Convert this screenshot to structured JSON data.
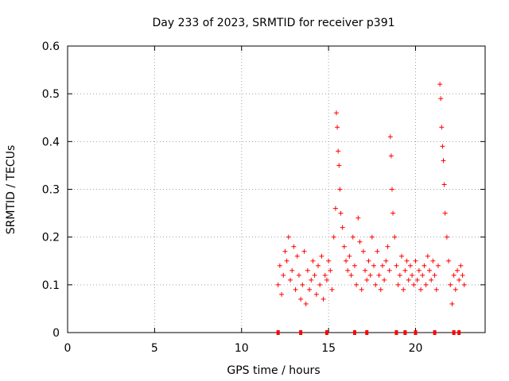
{
  "chart_data": {
    "type": "scatter",
    "title": "Day 233 of 2023, SRMTID for receiver p391",
    "xlabel": "GPS time / hours",
    "ylabel": "SRMTID / TECUs",
    "xlim": [
      0,
      24
    ],
    "ylim": [
      0,
      0.6
    ],
    "xticks": [
      0,
      5,
      10,
      15,
      20
    ],
    "yticks": [
      0,
      0.1,
      0.2,
      0.3,
      0.4,
      0.5,
      0.6
    ],
    "xtick_labels": [
      "0",
      "5",
      "10",
      "15",
      "20"
    ],
    "ytick_labels": [
      "0",
      "0.1",
      "0.2",
      "0.3",
      "0.4",
      "0.5",
      "0.6"
    ],
    "grid": true,
    "marker": "+",
    "color": "#ff0000",
    "series": [
      {
        "name": "p391",
        "x": [
          12.1,
          12.2,
          12.3,
          12.4,
          12.5,
          12.6,
          12.7,
          12.8,
          12.9,
          13.0,
          13.1,
          13.2,
          13.3,
          13.4,
          13.5,
          13.6,
          13.7,
          13.8,
          13.9,
          14.0,
          14.1,
          14.2,
          14.3,
          14.4,
          14.5,
          14.6,
          14.7,
          14.8,
          14.9,
          15.0,
          15.1,
          15.2,
          15.3,
          15.4,
          15.45,
          15.5,
          15.55,
          15.6,
          15.65,
          15.7,
          15.8,
          15.9,
          16.0,
          16.1,
          16.2,
          16.3,
          16.4,
          16.5,
          16.6,
          16.7,
          16.8,
          16.9,
          17.0,
          17.1,
          17.2,
          17.3,
          17.4,
          17.5,
          17.6,
          17.7,
          17.8,
          17.9,
          18.0,
          18.1,
          18.2,
          18.3,
          18.4,
          18.5,
          18.55,
          18.6,
          18.65,
          18.7,
          18.8,
          18.9,
          19.0,
          19.1,
          19.2,
          19.3,
          19.4,
          19.5,
          19.6,
          19.7,
          19.8,
          19.9,
          20.0,
          20.1,
          20.2,
          20.3,
          20.4,
          20.5,
          20.6,
          20.7,
          20.8,
          20.9,
          21.0,
          21.1,
          21.2,
          21.3,
          21.4,
          21.45,
          21.5,
          21.55,
          21.6,
          21.65,
          21.7,
          21.8,
          21.9,
          22.0,
          22.1,
          22.2,
          22.3,
          22.4,
          22.5,
          22.6,
          22.7,
          22.8
        ],
        "y": [
          0.1,
          0.14,
          0.08,
          0.12,
          0.17,
          0.15,
          0.2,
          0.11,
          0.13,
          0.18,
          0.09,
          0.16,
          0.12,
          0.07,
          0.1,
          0.17,
          0.06,
          0.13,
          0.09,
          0.11,
          0.15,
          0.12,
          0.08,
          0.14,
          0.1,
          0.16,
          0.07,
          0.12,
          0.11,
          0.15,
          0.13,
          0.09,
          0.2,
          0.26,
          0.46,
          0.43,
          0.38,
          0.35,
          0.3,
          0.25,
          0.22,
          0.18,
          0.15,
          0.13,
          0.16,
          0.12,
          0.2,
          0.14,
          0.1,
          0.24,
          0.19,
          0.09,
          0.17,
          0.13,
          0.11,
          0.15,
          0.12,
          0.2,
          0.14,
          0.1,
          0.17,
          0.12,
          0.09,
          0.14,
          0.11,
          0.15,
          0.18,
          0.13,
          0.41,
          0.37,
          0.3,
          0.25,
          0.2,
          0.14,
          0.1,
          0.12,
          0.16,
          0.09,
          0.13,
          0.15,
          0.11,
          0.14,
          0.12,
          0.1,
          0.15,
          0.11,
          0.13,
          0.09,
          0.12,
          0.14,
          0.1,
          0.16,
          0.13,
          0.11,
          0.15,
          0.12,
          0.09,
          0.14,
          0.52,
          0.49,
          0.43,
          0.39,
          0.36,
          0.31,
          0.25,
          0.2,
          0.15,
          0.1,
          0.06,
          0.12,
          0.09,
          0.13,
          0.11,
          0.14,
          0.12,
          0.1
        ]
      }
    ],
    "gap_markers_x": [
      12.1,
      13.4,
      14.9,
      16.5,
      17.2,
      18.9,
      19.4,
      20.0,
      21.1,
      22.2,
      22.5
    ]
  }
}
